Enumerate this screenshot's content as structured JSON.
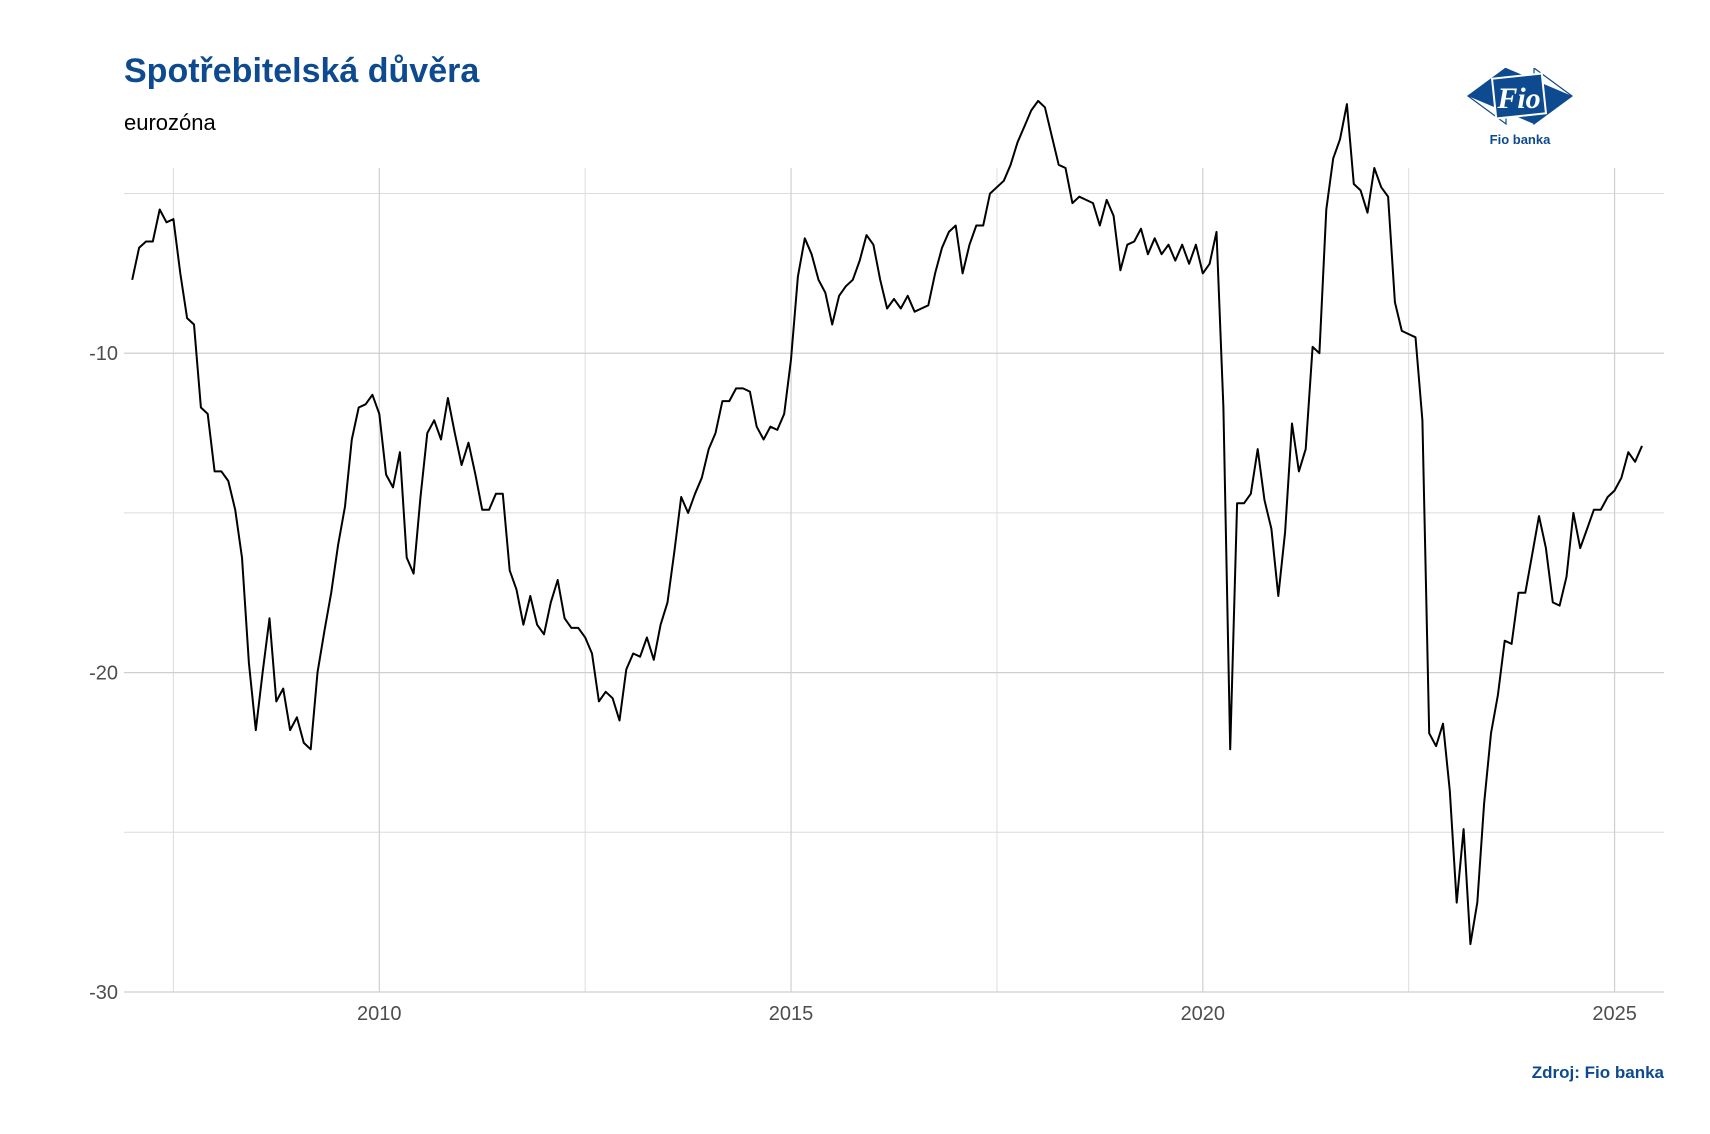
{
  "header": {
    "title": "Spotřebitelská důvěra",
    "subtitle": "eurozóna"
  },
  "logo": {
    "mark_text": "Fio",
    "name": "Fio banka",
    "brand_color": "#0d4a8f"
  },
  "footer": {
    "source": "Zdroj: Fio banka"
  },
  "chart_data": {
    "type": "line",
    "title": "Spotřebitelská důvěra",
    "subtitle": "eurozóna",
    "xlabel": "",
    "ylabel": "",
    "x_ticks": [
      2010,
      2015,
      2020,
      2025
    ],
    "y_ticks": [
      -10,
      -20,
      -30
    ],
    "xlim": [
      2006.9,
      2025.6
    ],
    "ylim": [
      -30,
      -4.2
    ],
    "grid": true,
    "line_color": "#000000",
    "series": [
      {
        "x_start": 2007.0,
        "step": 0.08333,
        "values": [
          -7.7,
          -6.7,
          -6.5,
          -6.5,
          -5.5,
          -5.9,
          -5.8,
          -7.5,
          -8.9,
          -9.1,
          -11.7,
          -11.9,
          -13.7,
          -13.7,
          -14.0,
          -14.9,
          -16.4,
          -19.7,
          -21.8,
          -20.0,
          -18.3,
          -20.9,
          -20.5,
          -21.8,
          -21.4,
          -22.2,
          -22.4,
          -20.0,
          -18.7,
          -17.5,
          -16.0,
          -14.8,
          -12.7,
          -11.7,
          -11.6,
          -11.3,
          -11.9,
          -13.8,
          -14.2,
          -13.1,
          -16.4,
          -16.9,
          -14.5,
          -12.5,
          -12.1,
          -12.7,
          -11.4,
          -12.5,
          -13.5,
          -12.8,
          -13.8,
          -14.9,
          -14.9,
          -14.4,
          -14.4,
          -16.8,
          -17.4,
          -18.5,
          -17.6,
          -18.5,
          -18.8,
          -17.8,
          -17.1,
          -18.3,
          -18.6,
          -18.6,
          -18.9,
          -19.4,
          -20.9,
          -20.6,
          -20.8,
          -21.5,
          -19.9,
          -19.4,
          -19.5,
          -18.9,
          -19.6,
          -18.5,
          -17.8,
          -16.2,
          -14.5,
          -15.0,
          -14.4,
          -13.9,
          -13.0,
          -12.5,
          -11.5,
          -11.5,
          -11.1,
          -11.1,
          -11.2,
          -12.3,
          -12.7,
          -12.3,
          -12.4,
          -11.9,
          -10.2,
          -7.6,
          -6.4,
          -6.9,
          -7.7,
          -8.1,
          -9.1,
          -8.2,
          -7.9,
          -7.7,
          -7.1,
          -6.3,
          -6.6,
          -7.7,
          -8.6,
          -8.3,
          -8.6,
          -8.2,
          -8.7,
          -8.6,
          -8.5,
          -7.5,
          -6.7,
          -6.2,
          -6.0,
          -7.5,
          -6.6,
          -6.0,
          -6.0,
          -5.0,
          -4.8,
          -4.6,
          -4.1,
          -3.4,
          -2.9,
          -2.4,
          -2.1,
          -2.3,
          -3.2,
          -4.1,
          -4.2,
          -5.3,
          -5.1,
          -5.2,
          -5.3,
          -6.0,
          -5.2,
          -5.7,
          -7.4,
          -6.6,
          -6.5,
          -6.1,
          -6.9,
          -6.4,
          -6.9,
          -6.6,
          -7.1,
          -6.6,
          -7.2,
          -6.6,
          -7.5,
          -7.2,
          -6.2,
          -11.7,
          -22.4,
          -14.7,
          -14.7,
          -14.4,
          -13.0,
          -14.6,
          -15.5,
          -17.6,
          -15.6,
          -12.2,
          -13.7,
          -13.0,
          -9.8,
          -10.0,
          -5.5,
          -3.9,
          -3.3,
          -2.2,
          -4.7,
          -4.9,
          -5.6,
          -4.2,
          -4.8,
          -5.1,
          -8.4,
          -9.3,
          -9.4,
          -9.5,
          -12.1,
          -21.9,
          -22.3,
          -21.6,
          -23.7,
          -27.2,
          -24.9,
          -28.5,
          -27.2,
          -24.1,
          -21.9,
          -20.7,
          -19.0,
          -19.1,
          -17.5,
          -17.5,
          -16.3,
          -15.1,
          -16.1,
          -17.8,
          -17.9,
          -17.0,
          -15.0,
          -16.1,
          -15.5,
          -14.9,
          -14.9,
          -14.5,
          -14.3,
          -13.9,
          -13.1,
          -13.4,
          -12.9
        ]
      }
    ]
  }
}
